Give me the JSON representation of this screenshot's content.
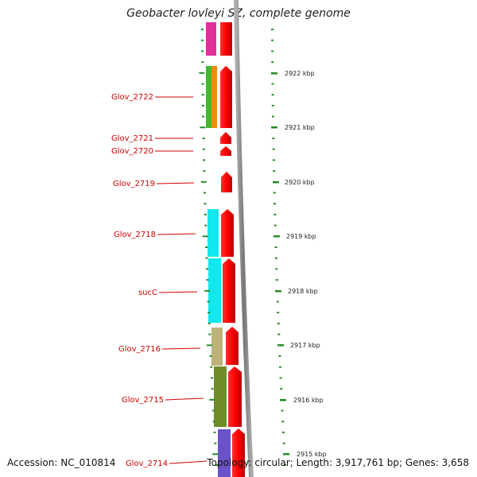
{
  "title": "Geobacter lovleyi SZ, complete genome",
  "accession": "Accession: NC_010814",
  "topology": "Topology: circular; Length: 3,917,761 bp; Genes: 3,658",
  "genes": [
    {
      "label": "Glov_2722"
    },
    {
      "label": "Glov_2721"
    },
    {
      "label": "Glov_2720"
    },
    {
      "label": "Glov_2719"
    },
    {
      "label": "Glov_2718"
    },
    {
      "label": "sucC"
    },
    {
      "label": "Glov_2716"
    },
    {
      "label": "Glov_2715"
    },
    {
      "label": "Glov_2714"
    }
  ],
  "scale": [
    "2922 kbp",
    "2921 kbp",
    "2920 kbp",
    "2919 kbp",
    "2918 kbp",
    "2917 kbp",
    "2916 kbp",
    "2915 kbp"
  ],
  "colors": {
    "gene_arrow": "#ff0000",
    "gene_label": "#d40000",
    "tick": "#2a8a2a",
    "backbone": "#888888",
    "cog_magenta": "#e0309a",
    "cog_green": "#3dbb2f",
    "cog_orange": "#f08a10",
    "cog_cyan": "#10e8ee",
    "cog_khaki": "#bcb27a",
    "cog_olive": "#6e8c2a",
    "cog_purple": "#6b52c8"
  }
}
